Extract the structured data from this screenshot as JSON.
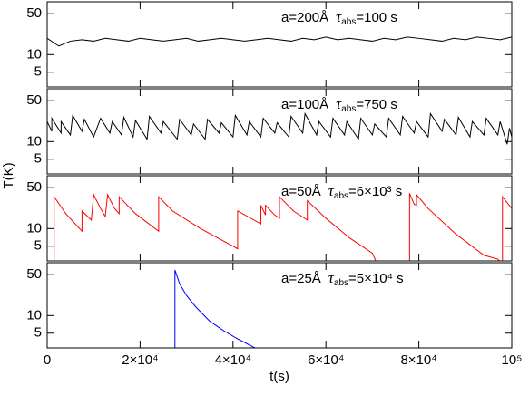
{
  "y_label": "T(K)",
  "chart_data": [
    {
      "type": "line",
      "color": "#000000",
      "log_y": true,
      "xlim": [
        0,
        100000
      ],
      "ylim": [
        2.8,
        80
      ],
      "yticks": [
        5,
        10,
        50
      ],
      "annotation": {
        "size": "a=200Å",
        "tau": "τ",
        "sub": "abs",
        "value": "=100 s"
      },
      "x": [
        0,
        2500,
        5000,
        7500,
        10000,
        12500,
        15000,
        17500,
        20000,
        22500,
        25000,
        27500,
        30000,
        32500,
        35000,
        37500,
        40000,
        42500,
        45000,
        47500,
        50000,
        52500,
        55000,
        57500,
        60000,
        62500,
        65000,
        67500,
        70000,
        72500,
        75000,
        77500,
        80000,
        82500,
        85000,
        87500,
        90000,
        92500,
        95000,
        97500,
        100000
      ],
      "values": [
        19,
        14,
        17,
        18,
        17,
        19,
        18,
        17,
        19,
        18,
        17,
        18,
        19,
        17,
        18,
        19,
        18,
        17,
        18,
        19,
        18,
        17,
        19,
        18,
        20,
        18,
        19,
        18,
        17,
        19,
        18,
        20,
        19,
        18,
        17,
        19,
        18,
        20,
        19,
        18,
        20
      ]
    },
    {
      "type": "line",
      "color": "#000000",
      "log_y": true,
      "xlim": [
        0,
        100000
      ],
      "ylim": [
        2.8,
        80
      ],
      "yticks": [
        5,
        10,
        50
      ],
      "annotation": {
        "size": "a=100Å",
        "tau": "τ",
        "sub": "abs",
        "value": "=750 s"
      },
      "x": [
        0,
        1000,
        1000,
        3000,
        3000,
        5000,
        5500,
        7500,
        8000,
        10000,
        11500,
        13500,
        14000,
        16000,
        16500,
        18500,
        19000,
        21500,
        22000,
        24500,
        25000,
        28000,
        28500,
        31000,
        31500,
        34000,
        34500,
        37000,
        37500,
        40000,
        40500,
        43000,
        43500,
        46000,
        46500,
        49000,
        49500,
        52000,
        52500,
        55000,
        55500,
        58000,
        58500,
        61000,
        61500,
        64000,
        64500,
        67000,
        67500,
        70000,
        70500,
        73000,
        73500,
        76000,
        76500,
        79000,
        79500,
        82000,
        82500,
        85000,
        85500,
        88000,
        88500,
        91000,
        91500,
        94000,
        94500,
        97000,
        97500,
        99000,
        99500,
        100000
      ],
      "values": [
        22,
        15,
        25,
        14,
        22,
        13,
        28,
        15,
        24,
        12,
        25,
        14,
        22,
        13,
        26,
        12,
        23,
        11,
        27,
        14,
        22,
        11,
        24,
        13,
        20,
        11,
        24,
        14,
        21,
        12,
        28,
        13,
        22,
        12,
        25,
        14,
        21,
        12,
        27,
        14,
        30,
        13,
        22,
        12,
        25,
        13,
        22,
        11,
        25,
        13,
        20,
        12,
        25,
        13,
        27,
        14,
        22,
        12,
        30,
        15,
        24,
        13,
        26,
        12,
        22,
        13,
        25,
        13,
        22,
        9,
        17,
        12
      ]
    },
    {
      "type": "line",
      "color": "#ff0000",
      "log_y": true,
      "xlim": [
        0,
        100000
      ],
      "ylim": [
        2.8,
        80
      ],
      "yticks": [
        5,
        10,
        50
      ],
      "annotation": {
        "size": "a=50Å",
        "tau": "τ",
        "sub": "abs",
        "value": "=6×10³ s"
      },
      "x": [
        1500,
        1500,
        4000,
        7500,
        7500,
        9500,
        10000,
        11500,
        12500,
        13000,
        14500,
        15500,
        15500,
        19000,
        24000,
        24000,
        27000,
        33000,
        40000,
        41000,
        41000,
        46000,
        46000,
        47000,
        47000,
        49000,
        50000,
        50000,
        53000,
        56000,
        56000,
        60000,
        65000,
        70000,
        71000,
        78000,
        78000,
        79000,
        79500,
        79500,
        82000,
        88000,
        94000,
        97000,
        98000,
        98000,
        100000
      ],
      "values": [
        2.5,
        35,
        18,
        9,
        20,
        14,
        38,
        22,
        16,
        38,
        22,
        18,
        35,
        18,
        9,
        35,
        20,
        10,
        5,
        4.5,
        20,
        12,
        25,
        17,
        25,
        17,
        15,
        35,
        20,
        14,
        30,
        15,
        7,
        3.8,
        2.5,
        2.5,
        40,
        26,
        25,
        38,
        22,
        8,
        3.5,
        3,
        2.5,
        35,
        22
      ]
    },
    {
      "type": "line",
      "color": "#0000ff",
      "log_y": true,
      "xlim": [
        0,
        100000
      ],
      "ylim": [
        2.8,
        80
      ],
      "yticks": [
        5,
        10,
        50
      ],
      "annotation": {
        "size": "a=25Å",
        "tau": "τ",
        "sub": "abs",
        "value": "=5×10⁴ s"
      },
      "x": [
        27500,
        27500,
        28500,
        30000,
        32000,
        35000,
        38000,
        41000,
        44000,
        46000,
        100000
      ],
      "values": [
        2.5,
        60,
        35,
        22,
        14,
        8,
        5.5,
        4,
        3,
        2.5,
        2.5
      ],
      "x_label": "t(s)",
      "xticks": [
        0,
        {
          "value": 20000,
          "label": "2×10⁴"
        },
        {
          "value": 40000,
          "label": "4×10⁴"
        },
        {
          "value": 60000,
          "label": "6×10⁴"
        },
        {
          "value": 80000,
          "label": "8×10⁴"
        },
        {
          "value": 100000,
          "label": "10⁵"
        }
      ]
    }
  ]
}
